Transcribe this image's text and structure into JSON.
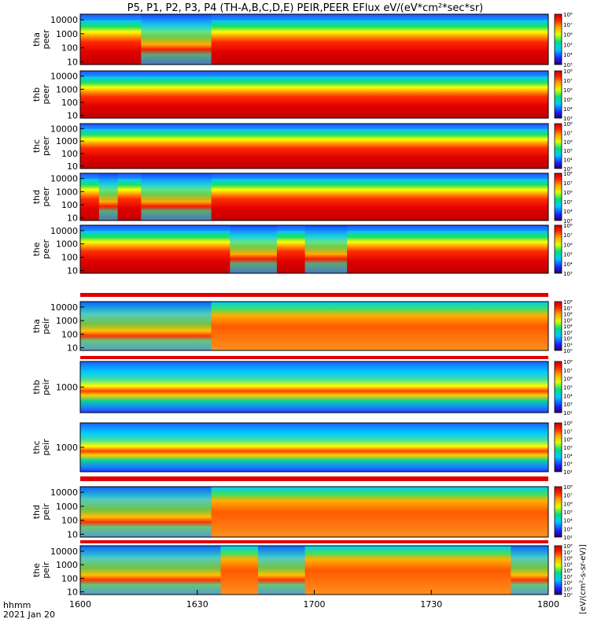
{
  "title": "P5, P1, P2, P3, P4 (TH-A,B,C,D,E) PEIR,PEER EFlux eV/(eV*cm²*sec*sr)",
  "colorbar_label": "[eV/(cm²-s-sr-eV)]",
  "time_axis": {
    "ticks": [
      "1600",
      "1630",
      "1700",
      "1730",
      "1800"
    ],
    "label_line1": "hhmm",
    "label_line2": "2021 Jan 20"
  },
  "colorbar_ticks": [
    "10³",
    "10⁴",
    "10⁵",
    "10⁶",
    "10⁷",
    "10⁸"
  ],
  "chart_data": {
    "type": "heatmap",
    "x": "time (hhmm)",
    "xlim": [
      "16:00",
      "18:00"
    ],
    "colormap": "rainbow (purple-blue-cyan-green-yellow-red)",
    "panels": [
      {
        "name": "tha peer",
        "label_line1": "tha",
        "label_line2": "peer",
        "y_ticks": [
          "10",
          "100",
          "1000",
          "10000"
        ],
        "log_y": true,
        "cbar_ticks": [
          "10³",
          "10⁴",
          "10⁵",
          "10⁶",
          "10⁷",
          "10⁸"
        ],
        "pattern": "peer",
        "gaps": [
          [
            13,
            28
          ]
        ]
      },
      {
        "name": "thb peer",
        "label_line1": "thb",
        "label_line2": "peer",
        "y_ticks": [
          "10",
          "100",
          "1000",
          "10000"
        ],
        "log_y": true,
        "cbar_ticks": [
          "10³",
          "10⁴",
          "10⁵",
          "10⁶",
          "10⁷",
          "10⁸"
        ],
        "pattern": "peer",
        "gaps": []
      },
      {
        "name": "thc peer",
        "label_line1": "thc",
        "label_line2": "peer",
        "y_ticks": [
          "10",
          "100",
          "1000",
          "10000"
        ],
        "log_y": true,
        "cbar_ticks": [
          "10³",
          "10⁴",
          "10⁵",
          "10⁶",
          "10⁷",
          "10⁸"
        ],
        "pattern": "peer",
        "gaps": []
      },
      {
        "name": "thd peer",
        "label_line1": "thd",
        "label_line2": "peer",
        "y_ticks": [
          "10",
          "100",
          "1000",
          "10000"
        ],
        "log_y": true,
        "cbar_ticks": [
          "10³",
          "10⁴",
          "10⁵",
          "10⁶",
          "10⁷",
          "10⁸"
        ],
        "pattern": "peer",
        "gaps": [
          [
            4,
            8
          ],
          [
            13,
            28
          ]
        ]
      },
      {
        "name": "the peer",
        "label_line1": "the",
        "label_line2": "peer",
        "y_ticks": [
          "10",
          "100",
          "1000",
          "10000"
        ],
        "log_y": true,
        "cbar_ticks": [
          "10³",
          "10⁴",
          "10⁵",
          "10⁶",
          "10⁷",
          "10⁸"
        ],
        "pattern": "peer",
        "gaps": [
          [
            32,
            42
          ],
          [
            48,
            57
          ]
        ]
      },
      {
        "name": "tha peir",
        "label_line1": "tha",
        "label_line2": "peir",
        "y_ticks": [
          "10",
          "100",
          "1000",
          "10000"
        ],
        "log_y": true,
        "cbar_ticks": [
          "10⁰",
          "10¹",
          "10²",
          "10³",
          "10⁴",
          "10⁵",
          "10⁶",
          "10⁷",
          "10⁸"
        ],
        "pattern": "peir",
        "gaps": [
          [
            0,
            28
          ]
        ]
      },
      {
        "name": "thb peir",
        "label_line1": "thb",
        "label_line2": "peir",
        "y_ticks": [
          "1000"
        ],
        "log_y": true,
        "cbar_ticks": [
          "10²",
          "10³",
          "10⁴",
          "10⁵",
          "10⁶",
          "10⁷",
          "10⁸"
        ],
        "pattern": "peir-narrow",
        "gaps": []
      },
      {
        "name": "thc peir",
        "label_line1": "thc",
        "label_line2": "peir",
        "y_ticks": [
          "1000"
        ],
        "log_y": true,
        "cbar_ticks": [
          "10²",
          "10³",
          "10⁴",
          "10⁵",
          "10⁶",
          "10⁷",
          "10⁸"
        ],
        "pattern": "peir-narrow",
        "gaps": []
      },
      {
        "name": "thd peir",
        "label_line1": "thd",
        "label_line2": "peir",
        "y_ticks": [
          "10",
          "100",
          "1000",
          "10000"
        ],
        "log_y": true,
        "cbar_ticks": [
          "10²",
          "10³",
          "10⁴",
          "10⁵",
          "10⁶",
          "10⁷",
          "10⁸"
        ],
        "pattern": "peir",
        "gaps": [
          [
            0,
            28
          ]
        ]
      },
      {
        "name": "the peir",
        "label_line1": "the",
        "label_line2": "peir",
        "y_ticks": [
          "10",
          "100",
          "1000",
          "10000"
        ],
        "log_y": true,
        "cbar_ticks": [
          "10⁰",
          "10¹",
          "10²",
          "10³",
          "10⁴",
          "10⁵",
          "10⁶",
          "10⁷",
          "10⁸"
        ],
        "pattern": "peir",
        "gaps": [
          [
            0,
            30
          ],
          [
            38,
            48
          ],
          [
            92,
            100
          ]
        ]
      }
    ]
  }
}
